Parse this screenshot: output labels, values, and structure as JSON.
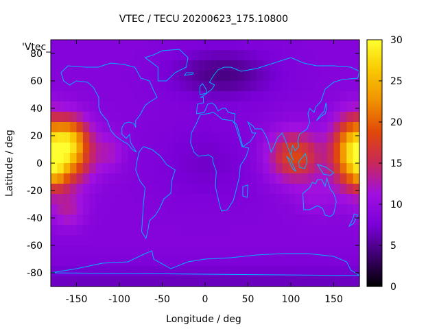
{
  "chart_data": {
    "type": "heatmap",
    "title": "VTEC / TECU 20200623_175.10800",
    "xlabel": "Longitude / deg",
    "ylabel": "Latitude / deg",
    "xlim": [
      -180,
      180
    ],
    "ylim": [
      -90,
      90
    ],
    "xticks": [
      -150,
      -100,
      -50,
      0,
      50,
      100,
      150
    ],
    "yticks": [
      -80,
      -60,
      -40,
      -20,
      0,
      20,
      40,
      60,
      80
    ],
    "colorbar": {
      "range": [
        0,
        30
      ],
      "ticks": [
        0,
        5,
        10,
        15,
        20,
        25,
        30
      ],
      "palette": [
        "#000000",
        "#3d006e",
        "#7a00d8",
        "#a010e0",
        "#c8285a",
        "#e0480a",
        "#f09000",
        "#f8c800",
        "#ffff30"
      ]
    },
    "legend_entry": "'Vtec_",
    "coastline_color": "#00b4ff",
    "background_tec": 8.5,
    "blobs": [
      {
        "lon": -165,
        "lat": 8,
        "slon": 22,
        "slat": 16,
        "amp": 17
      },
      {
        "lon": -155,
        "lat": 18,
        "slon": 12,
        "slat": 10,
        "amp": 5
      },
      {
        "lon": -175,
        "lat": -8,
        "slon": 10,
        "slat": 8,
        "amp": 4
      },
      {
        "lon": -160,
        "lat": -35,
        "slon": 14,
        "slat": 9,
        "amp": 4
      },
      {
        "lon": -110,
        "lat": 8,
        "slon": 12,
        "slat": 10,
        "amp": 3
      },
      {
        "lon": 105,
        "lat": 5,
        "slon": 22,
        "slat": 13,
        "amp": 10
      },
      {
        "lon": 170,
        "lat": 8,
        "slon": 16,
        "slat": 18,
        "amp": 11
      },
      {
        "lon": 130,
        "lat": -25,
        "slon": 18,
        "slat": 10,
        "amp": 2
      },
      {
        "lon": 20,
        "lat": 65,
        "slon": 40,
        "slat": 12,
        "amp": -4
      },
      {
        "lon": 0,
        "lat": 0,
        "slon": 40,
        "slat": 20,
        "amp": -1.5
      },
      {
        "lon": 0,
        "lat": -88,
        "slon": 400,
        "slat": 10,
        "amp": -2
      }
    ]
  }
}
